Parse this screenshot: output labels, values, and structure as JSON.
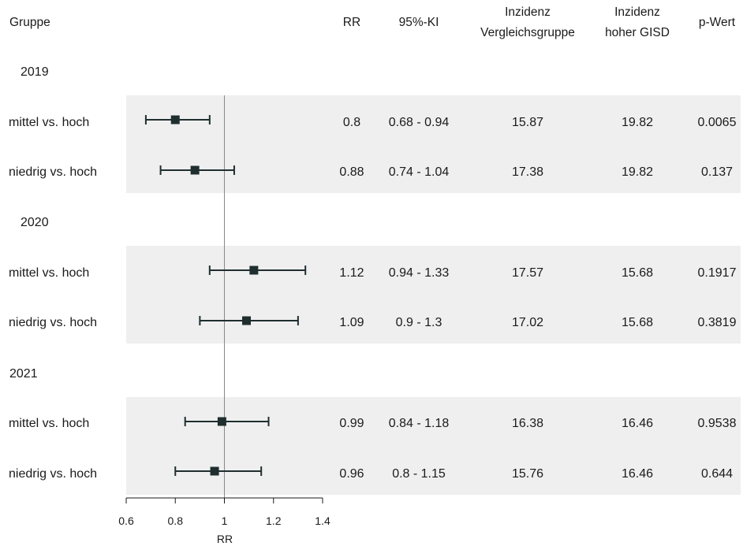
{
  "chart_data": {
    "type": "forest",
    "columns": {
      "group": "Gruppe",
      "rr": "RR",
      "ci": "95%-KI",
      "inc_comp": [
        "Inzidenz",
        "Vergleichsgruppe"
      ],
      "inc_high": [
        "Inzidenz",
        "hoher GISD"
      ],
      "p": "p-Wert"
    },
    "groups": [
      {
        "year": "2019",
        "rows": [
          {
            "label": "mittel vs. hoch",
            "rr": 0.8,
            "lo": 0.68,
            "hi": 0.94,
            "rr_text": "0.8",
            "ci_text": "0.68 - 0.94",
            "inc_comp": "15.87",
            "inc_high": "19.82",
            "p": "0.0065"
          },
          {
            "label": "niedrig vs. hoch",
            "rr": 0.88,
            "lo": 0.74,
            "hi": 1.04,
            "rr_text": "0.88",
            "ci_text": "0.74 - 1.04",
            "inc_comp": "17.38",
            "inc_high": "19.82",
            "p": "0.137"
          }
        ]
      },
      {
        "year": "2020",
        "rows": [
          {
            "label": "mittel vs. hoch",
            "rr": 1.12,
            "lo": 0.94,
            "hi": 1.33,
            "rr_text": "1.12",
            "ci_text": "0.94 - 1.33",
            "inc_comp": "17.57",
            "inc_high": "15.68",
            "p": "0.1917"
          },
          {
            "label": "niedrig vs. hoch",
            "rr": 1.09,
            "lo": 0.9,
            "hi": 1.3,
            "rr_text": "1.09",
            "ci_text": "0.9 - 1.3",
            "inc_comp": "17.02",
            "inc_high": "15.68",
            "p": "0.3819"
          }
        ]
      },
      {
        "year": "2021",
        "rows": [
          {
            "label": "mittel vs. hoch",
            "rr": 0.99,
            "lo": 0.84,
            "hi": 1.18,
            "rr_text": "0.99",
            "ci_text": "0.84 - 1.18",
            "inc_comp": "16.38",
            "inc_high": "16.46",
            "p": "0.9538"
          },
          {
            "label": "niedrig vs. hoch",
            "rr": 0.96,
            "lo": 0.8,
            "hi": 1.15,
            "rr_text": "0.96",
            "ci_text": "0.8 - 1.15",
            "inc_comp": "15.76",
            "inc_high": "16.46",
            "p": "0.644"
          }
        ]
      }
    ],
    "x_axis": {
      "label": "RR",
      "ticks": [
        "0.6",
        "0.8",
        "1",
        "1.2",
        "1.4"
      ],
      "range": [
        0.6,
        1.4
      ],
      "reference": 1
    },
    "colors": {
      "marker": "#1f2e2e",
      "band": "#efefef",
      "ref_line": "#888888"
    }
  }
}
